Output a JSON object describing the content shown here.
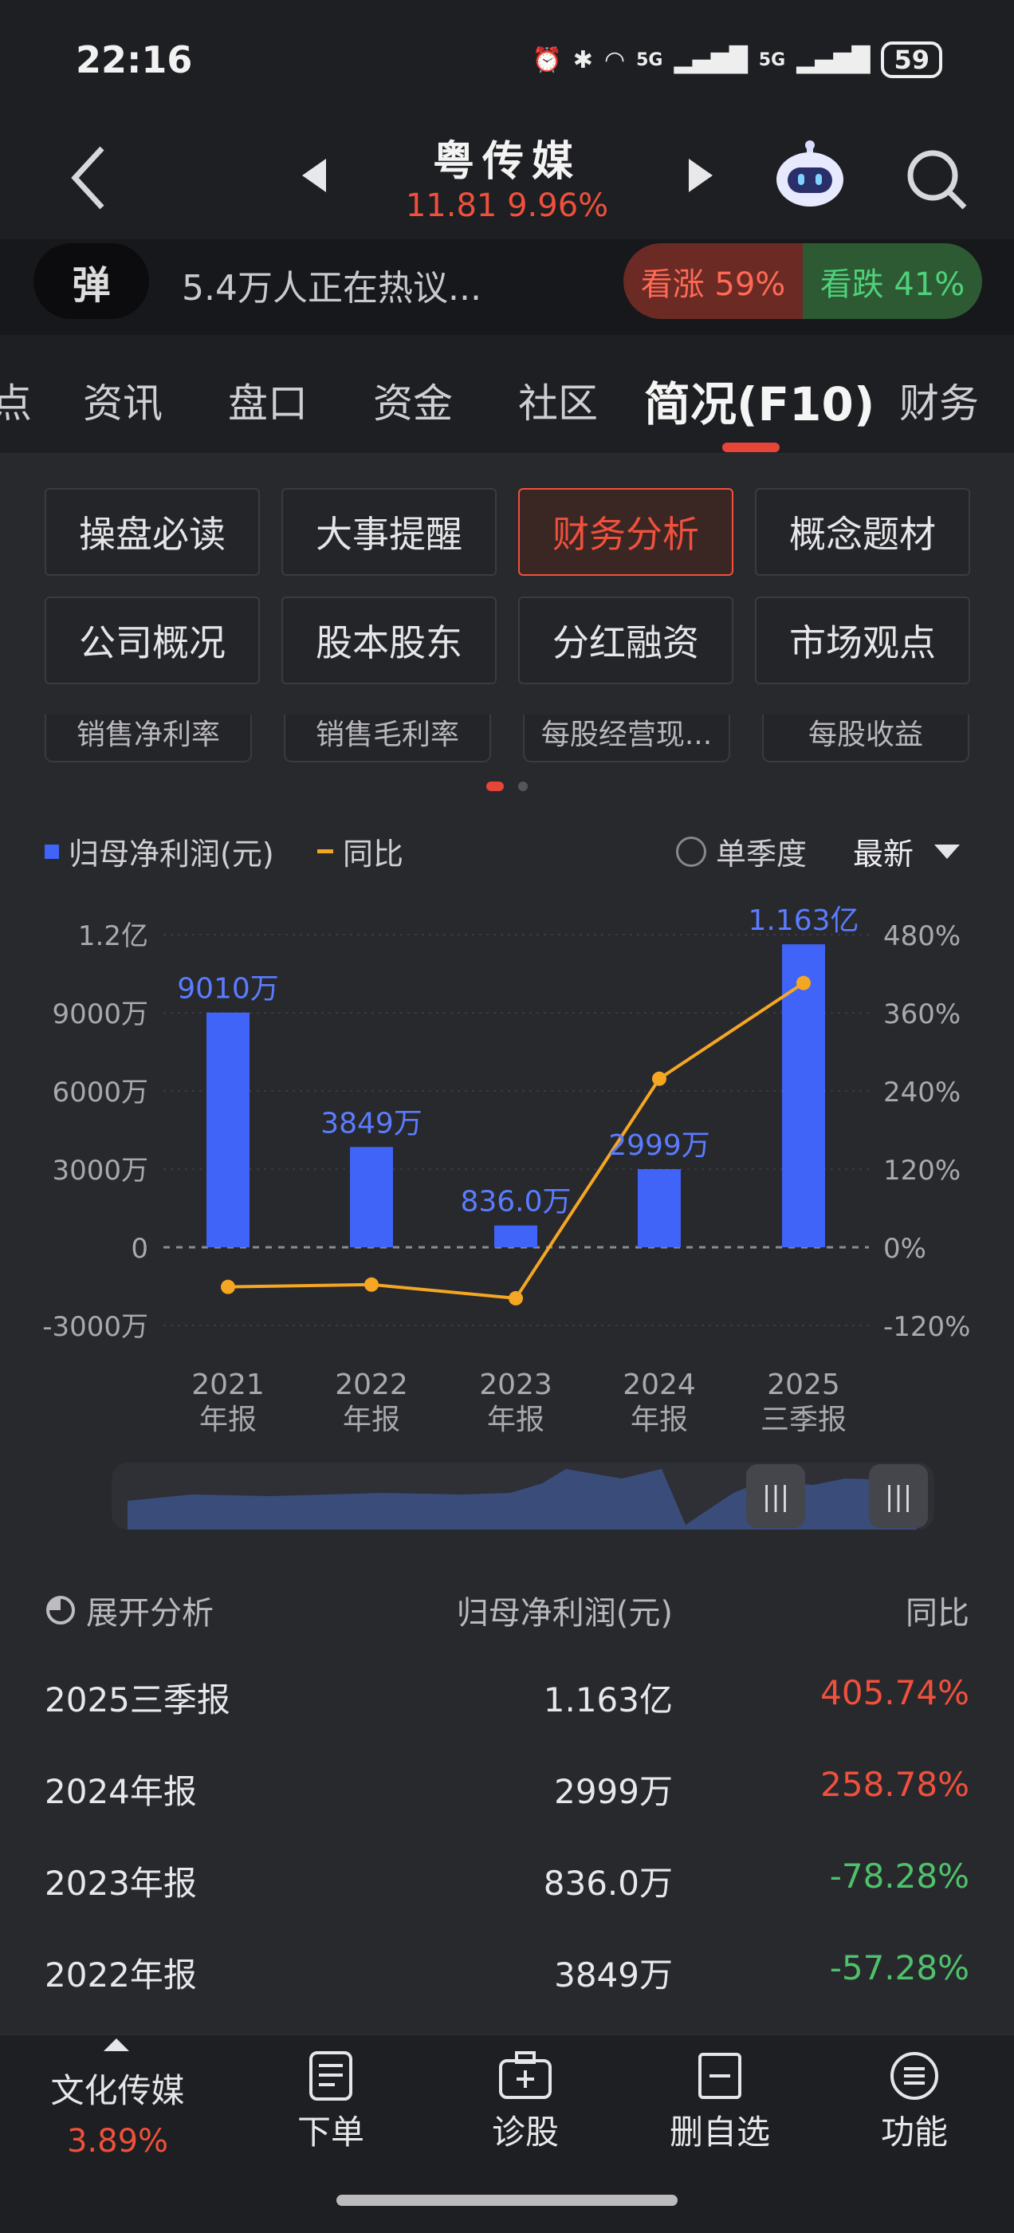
{
  "status_bar": {
    "time": "22:16",
    "network1": "5G",
    "network2": "5G",
    "battery": "59"
  },
  "header": {
    "title": "粤传媒",
    "price": "11.81",
    "change_pct": "9.96%"
  },
  "hot": {
    "danmu_label": "弹",
    "discussion": "5.4万人正在热议...",
    "bull": "看涨 59%",
    "bear": "看跌 41%"
  },
  "tabs": [
    "点",
    "资讯",
    "盘口",
    "资金",
    "社区",
    "简况(F10)",
    "财务"
  ],
  "sub_buttons": {
    "row1": [
      "操盘必读",
      "大事提醒",
      "财务分析",
      "概念题材"
    ],
    "row2": [
      "公司概况",
      "股本股东",
      "分红融资",
      "市场观点"
    ],
    "metrics": [
      "销售净利率",
      "销售毛利率",
      "每股经营现...",
      "每股收益"
    ]
  },
  "chart_controls": {
    "legend_bar": "归母净利润(元)",
    "legend_line": "同比",
    "single_quarter": "单季度",
    "latest": "最新"
  },
  "chart_data": {
    "type": "bar+line",
    "categories": [
      "2021\n年报",
      "2022\n年报",
      "2023\n年报",
      "2024\n年报",
      "2025\n三季报"
    ],
    "bar_series": {
      "name": "归母净利润(元)",
      "values_wan": [
        9010,
        3849,
        836.0,
        2999,
        11630
      ],
      "labels": [
        "9010万",
        "3849万",
        "836.0万",
        "2999万",
        "1.163亿"
      ],
      "color": "#3f64f7"
    },
    "line_series": {
      "name": "同比",
      "values_pct": [
        -60.8,
        -57.28,
        -78.28,
        258.78,
        405.74
      ],
      "color": "#f5a623"
    },
    "left_axis": {
      "ticks": [
        "1.2亿",
        "9000万",
        "6000万",
        "3000万",
        "0",
        "-3000万"
      ],
      "range_wan": [
        -3000,
        12000
      ]
    },
    "right_axis": {
      "ticks": [
        "480%",
        "360%",
        "240%",
        "120%",
        "0%",
        "-120%"
      ],
      "range_pct": [
        -120,
        480
      ]
    },
    "x_labels_line1": [
      "2021",
      "2022",
      "2023",
      "2024",
      "2025"
    ],
    "x_labels_line2": [
      "年报",
      "年报",
      "年报",
      "年报",
      "三季报"
    ]
  },
  "table": {
    "head": {
      "expand": "展开分析",
      "col1": "归母净利润(元)",
      "col2": "同比"
    },
    "rows": [
      {
        "period": "2025三季报",
        "value": "1.163亿",
        "yoy": "405.74%",
        "up": true
      },
      {
        "period": "2024年报",
        "value": "2999万",
        "yoy": "258.78%",
        "up": true
      },
      {
        "period": "2023年报",
        "value": "836.0万",
        "yoy": "-78.28%",
        "up": false
      },
      {
        "period": "2022年报",
        "value": "3849万",
        "yoy": "-57.28%",
        "up": false
      }
    ]
  },
  "bottom_nav": {
    "sector": "文化传媒",
    "sector_change": "3.89%",
    "items": [
      "下单",
      "诊股",
      "删自选",
      "功能"
    ]
  },
  "colors": {
    "up": "#f0503c",
    "down": "#4ec26a",
    "accent": "#3f64f7",
    "line": "#f5a623"
  }
}
